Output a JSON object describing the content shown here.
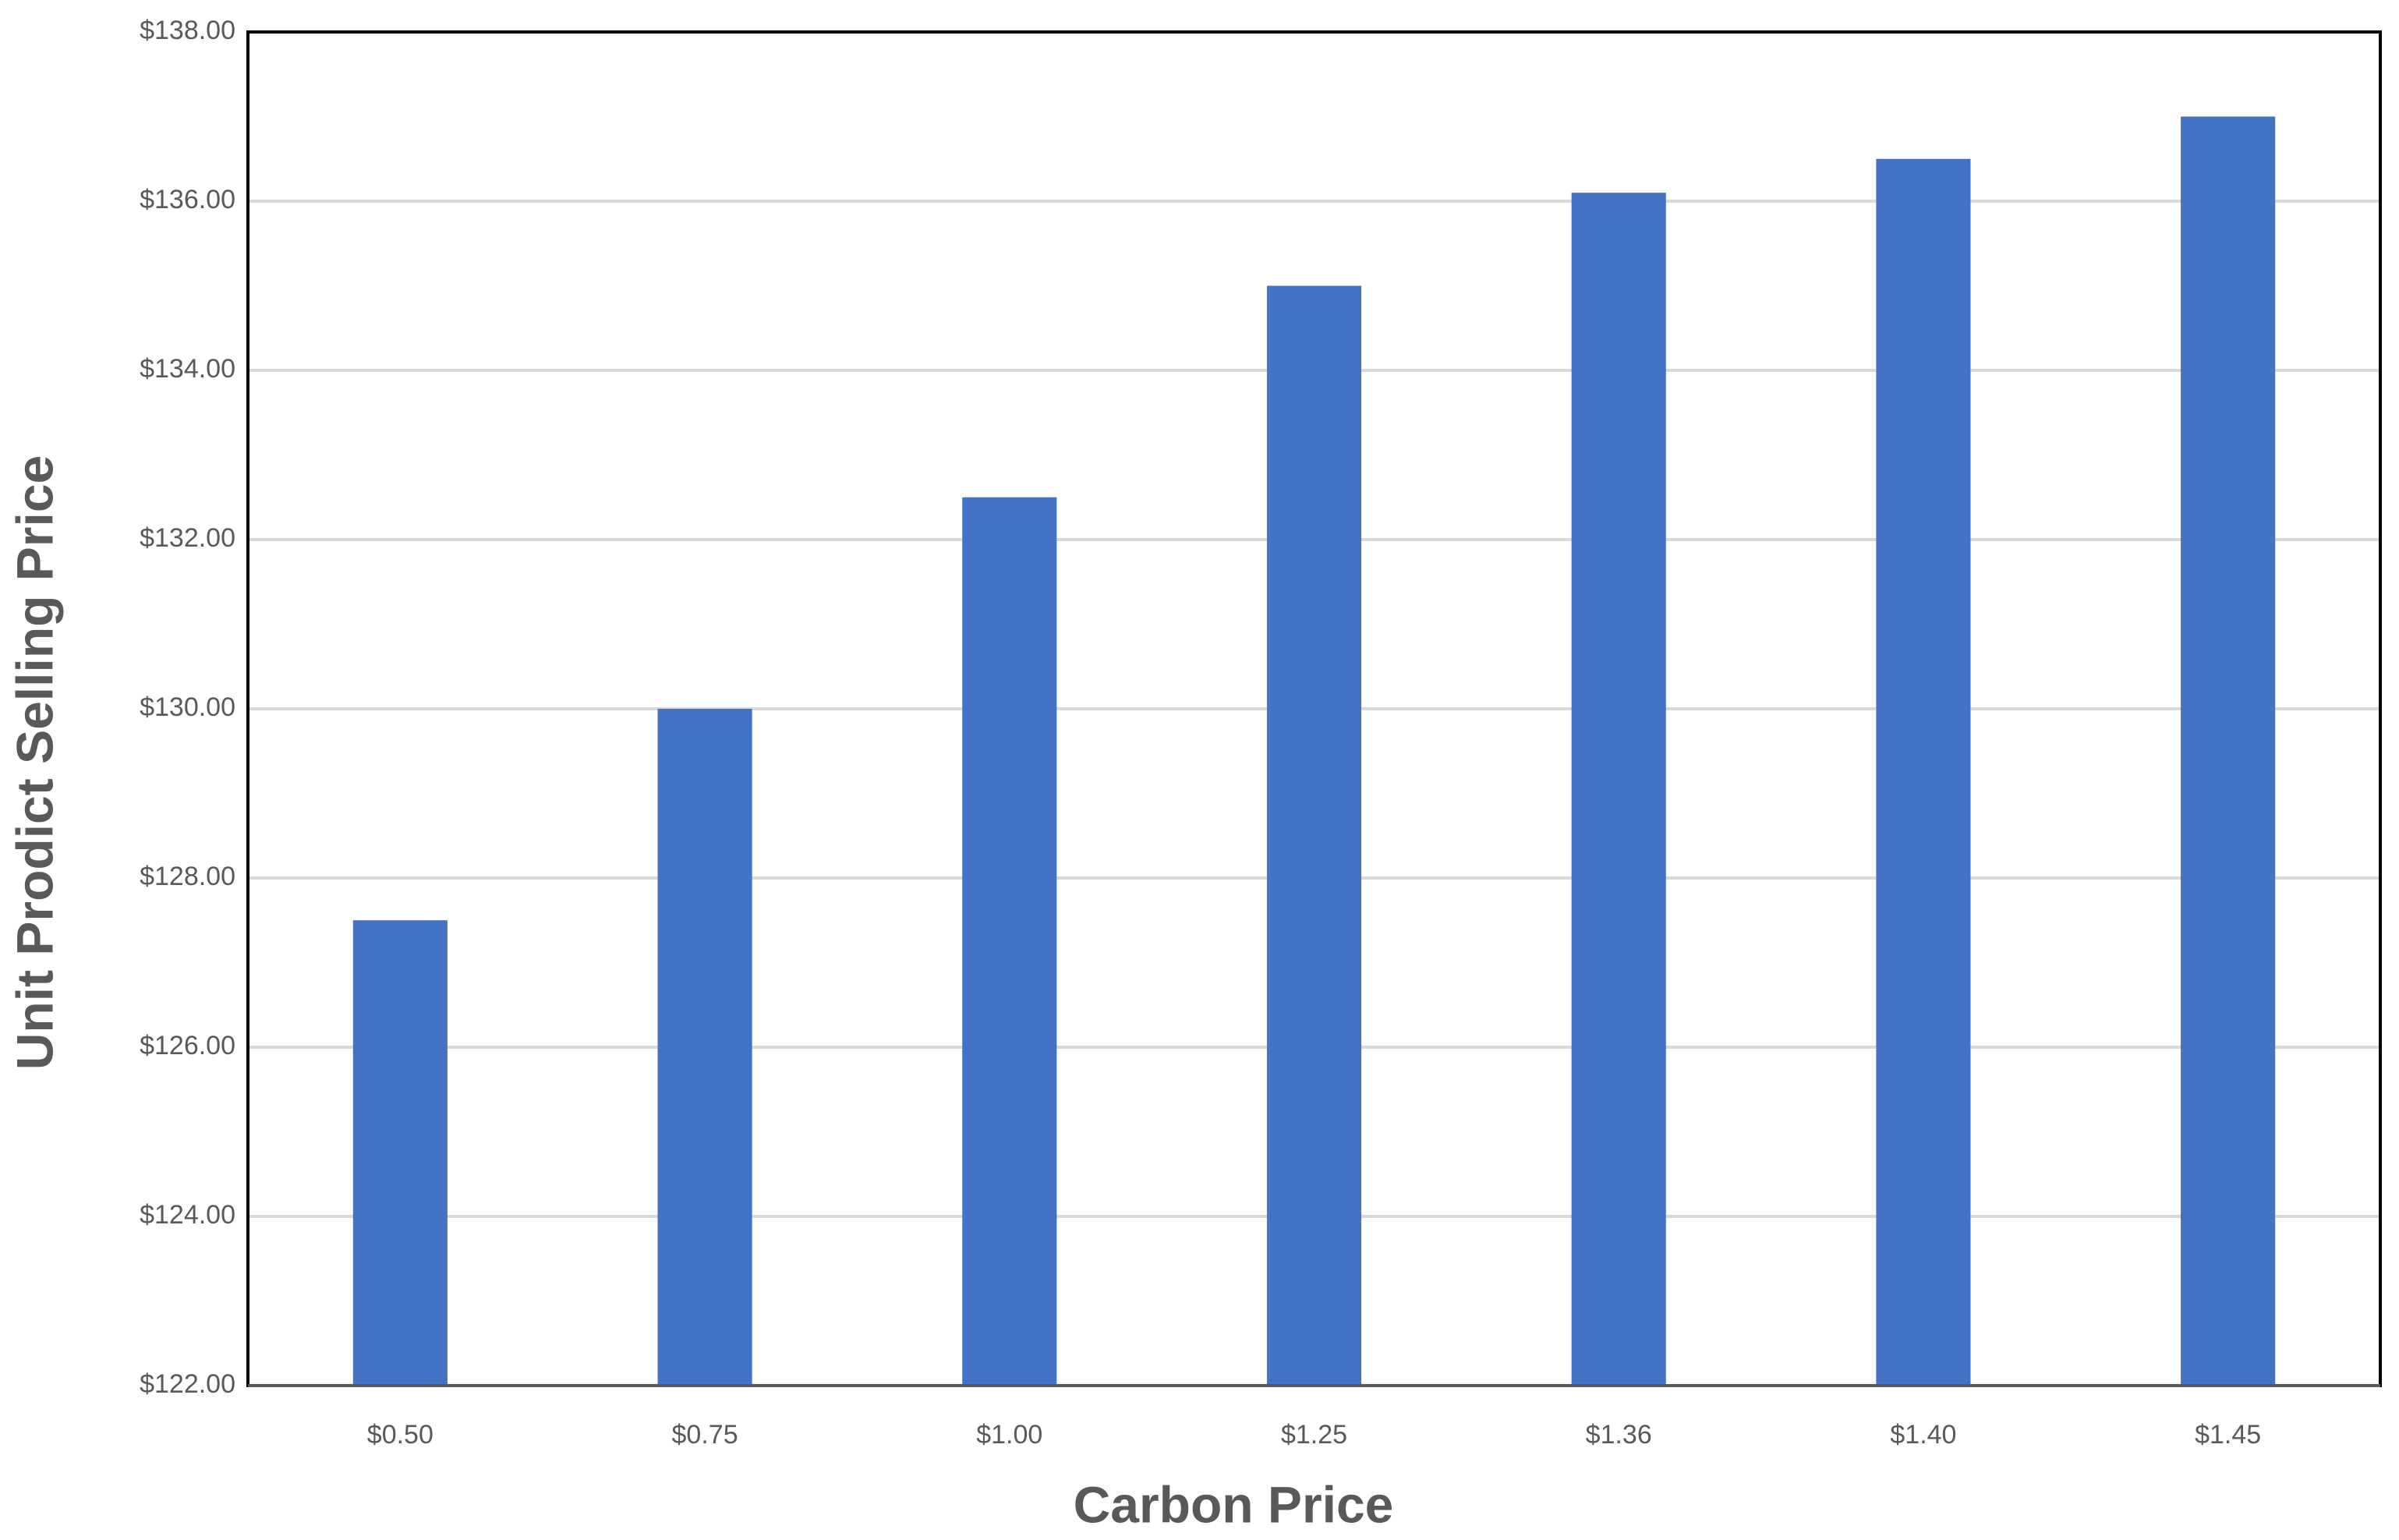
{
  "chart_data": {
    "type": "bar",
    "x_label": "Carbon Price",
    "y_label": "Unit Prodict Selling Price",
    "categories": [
      "$0.50",
      "$0.75",
      "$1.00",
      "$1.25",
      "$1.36",
      "$1.40",
      "$1.45"
    ],
    "values": [
      127.5,
      130.0,
      132.5,
      135.0,
      136.1,
      136.5,
      137.0
    ],
    "color": "#4472c4",
    "ylim": [
      122,
      138
    ],
    "yticks": [
      {
        "value": 122,
        "label": "$122.00"
      },
      {
        "value": 124,
        "label": "$124.00"
      },
      {
        "value": 126,
        "label": "$126.00"
      },
      {
        "value": 128,
        "label": "$128.00"
      },
      {
        "value": 130,
        "label": "$130.00"
      },
      {
        "value": 132,
        "label": "$132.00"
      },
      {
        "value": 134,
        "label": "$134.00"
      },
      {
        "value": 136,
        "label": "$136.00"
      },
      {
        "value": 138,
        "label": "$138.00"
      }
    ],
    "grid": true
  }
}
